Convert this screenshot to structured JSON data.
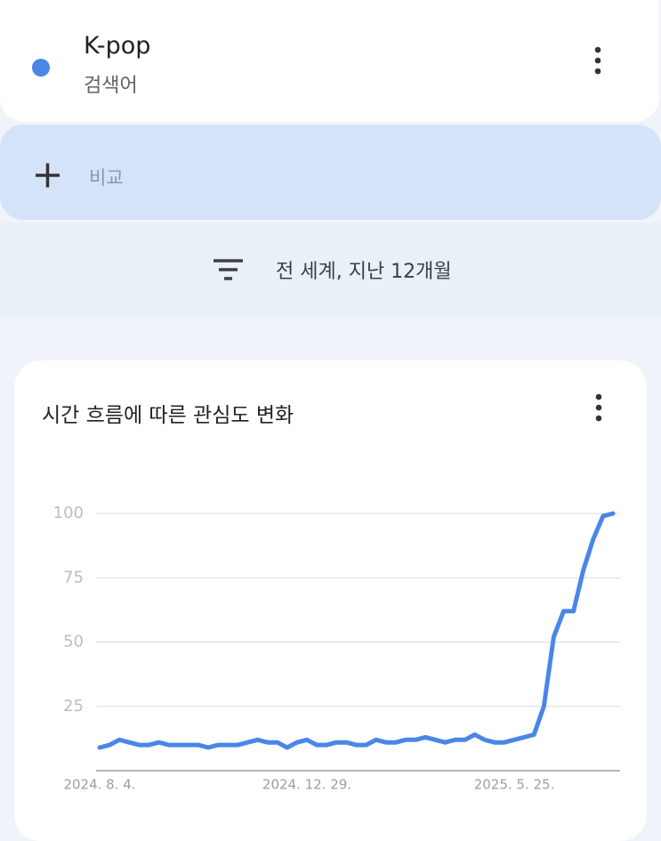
{
  "header": {
    "term": "K-pop",
    "term_type": "검색어"
  },
  "compare": {
    "label": "비교"
  },
  "filter": {
    "label": "전 세계, 지난 12개월"
  },
  "chart_data": {
    "type": "line",
    "title": "시간 흐름에 따른 관심도 변화",
    "categories": [
      "2024. 8. 4.",
      null,
      null,
      null,
      null,
      null,
      null,
      null,
      null,
      null,
      null,
      null,
      null,
      null,
      null,
      null,
      null,
      null,
      null,
      null,
      null,
      "2024. 12. 29.",
      null,
      null,
      null,
      null,
      null,
      null,
      null,
      null,
      null,
      null,
      null,
      null,
      null,
      null,
      null,
      null,
      null,
      null,
      null,
      null,
      "2025. 5. 25.",
      null,
      null,
      null,
      null,
      null,
      null,
      null,
      null,
      null,
      null
    ],
    "series": [
      {
        "name": "K-pop",
        "color": "#4a86e8",
        "values": [
          9,
          10,
          12,
          11,
          10,
          10,
          11,
          10,
          10,
          10,
          10,
          9,
          10,
          10,
          10,
          11,
          12,
          11,
          11,
          9,
          11,
          12,
          10,
          10,
          11,
          11,
          10,
          10,
          12,
          11,
          11,
          12,
          12,
          13,
          12,
          11,
          12,
          12,
          14,
          12,
          11,
          11,
          12,
          13,
          14,
          25,
          52,
          62,
          62,
          78,
          90,
          99,
          100
        ]
      }
    ],
    "ylim": [
      0,
      100
    ],
    "yticks": [
      25,
      50,
      75,
      100
    ],
    "grid": true
  }
}
